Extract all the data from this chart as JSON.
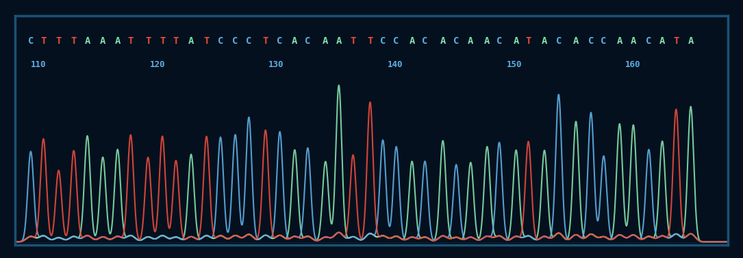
{
  "background_color": "#05101e",
  "border_color": "#1a5276",
  "sequence": "CTTTAAATTTTATCCCTCACAATTCCACACAACATACACCAACATA",
  "positions": [
    110,
    120,
    130,
    140,
    150,
    160
  ],
  "base_colors": {
    "C": "#5dade2",
    "T": "#e74c3c",
    "A": "#82e0aa",
    "G": "#f0b27a"
  },
  "line_colors": {
    "blue": "#5dade2",
    "red": "#e74c3c",
    "green": "#82e0aa",
    "orange": "#f0b27a"
  },
  "tick_color": "#5dade2",
  "title_fontsize": 11,
  "seq_fontsize": 11
}
